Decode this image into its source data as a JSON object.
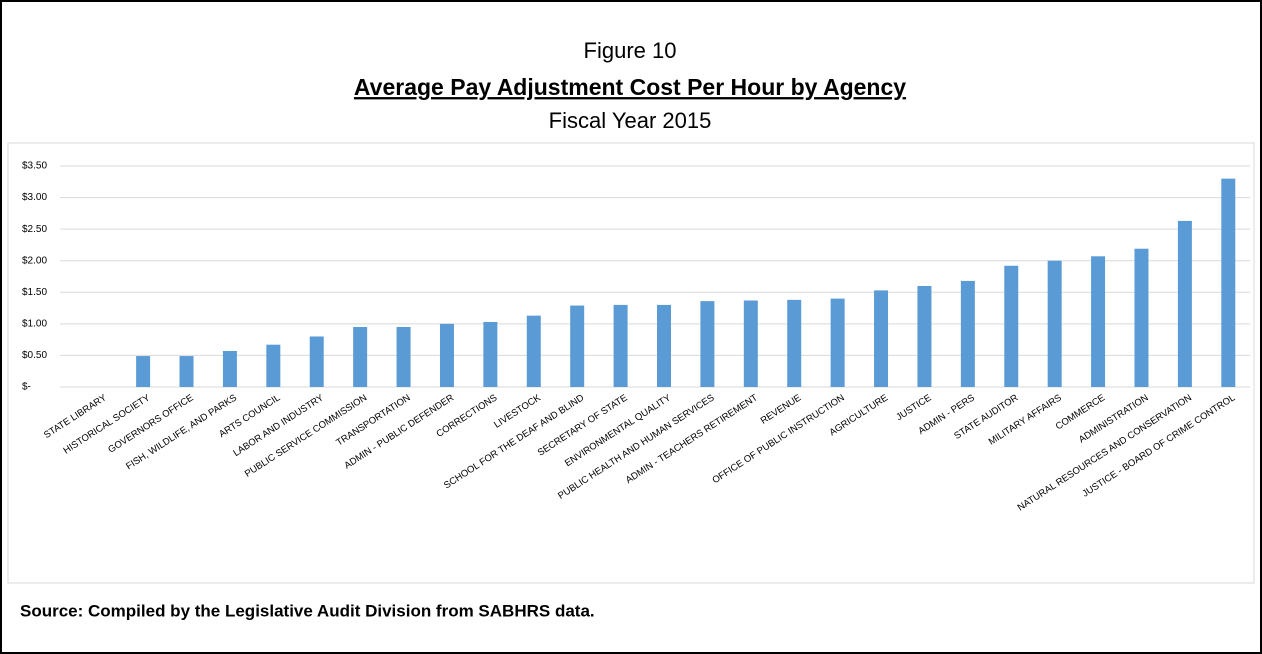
{
  "chart_data": {
    "type": "bar",
    "figure_label": "Figure 10",
    "title": "Average Pay Adjustment Cost Per Hour by Agency",
    "subtitle": "Fiscal Year 2015",
    "source": "Source:  Compiled by the Legislative Audit Division from SABHRS data.",
    "categories": [
      "STATE LIBRARY",
      "HISTORICAL SOCIETY",
      "GOVERNORS OFFICE",
      "FISH, WILDLIFE, AND PARKS",
      "ARTS COUNCIL",
      "LABOR AND INDUSTRY",
      "PUBLIC SERVICE COMMISSION",
      "TRANSPORTATION",
      "ADMIN - PUBLIC DEFENDER",
      "CORRECTIONS",
      "LIVESTOCK",
      "SCHOOL FOR THE DEAF AND BLIND",
      "SECRETARY OF STATE",
      "ENVIRONMENTAL QUALITY",
      "PUBLIC HEALTH AND HUMAN SERVICES",
      "ADMIN - TEACHERS RETIREMENT",
      "REVENUE",
      "OFFICE OF PUBLIC INSTRUCTION",
      "AGRICULTURE",
      "JUSTICE",
      "ADMIN - PERS",
      "STATE AUDITOR",
      "MILITARY AFFAIRS",
      "COMMERCE",
      "ADMINISTRATION",
      "NATURAL RESOURCES AND CONSERVATION",
      "JUSTICE - BOARD OF CRIME CONTROL"
    ],
    "values": [
      0,
      0.49,
      0.49,
      0.57,
      0.67,
      0.8,
      0.95,
      0.95,
      1.0,
      1.03,
      1.13,
      1.29,
      1.3,
      1.3,
      1.36,
      1.37,
      1.38,
      1.4,
      1.53,
      1.6,
      1.68,
      1.92,
      2.0,
      2.07,
      2.19,
      2.63,
      3.3
    ],
    "color": "#5b9bd5",
    "ylim": [
      0,
      3.5
    ],
    "yticks": [
      {
        "value": 0,
        "label": "$-"
      },
      {
        "value": 0.5,
        "label": "$0.50"
      },
      {
        "value": 1,
        "label": "$1.00"
      },
      {
        "value": 1.5,
        "label": "$1.50"
      },
      {
        "value": 2,
        "label": "$2.00"
      },
      {
        "value": 2.5,
        "label": "$2.50"
      },
      {
        "value": 3,
        "label": "$3.00"
      },
      {
        "value": 3.5,
        "label": "$3.50"
      }
    ],
    "grid": true
  }
}
